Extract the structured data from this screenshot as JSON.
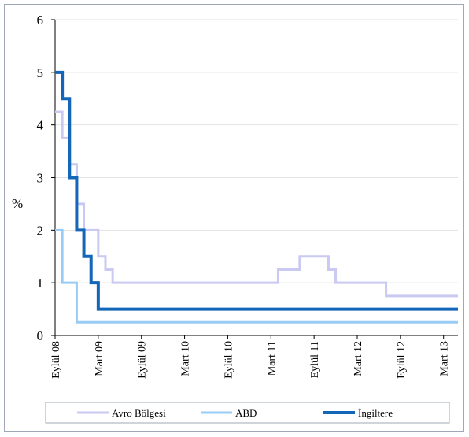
{
  "chart_data": {
    "type": "line",
    "title": "",
    "xlabel": "",
    "ylabel": "%",
    "ylim": [
      0,
      6
    ],
    "yticks": [
      "0",
      "1",
      "2",
      "3",
      "4",
      "5",
      "6"
    ],
    "xticks": [
      "Eylül 08",
      "Mart 09",
      "Eylül 09",
      "Mart 10",
      "Eylül 10",
      "Mart 11",
      "Eylül 11",
      "Mart 12",
      "Eylül 12",
      "Mart 13"
    ],
    "x_format": "year-month",
    "grid": true,
    "legend_position": "bottom",
    "line_style": "step",
    "series": [
      {
        "name": "Avro Bölgesi",
        "color": "#c9c9f2",
        "points": [
          [
            "2008-09",
            4.25
          ],
          [
            "2008-10",
            3.75
          ],
          [
            "2008-11",
            3.25
          ],
          [
            "2008-12",
            2.5
          ],
          [
            "2009-01",
            2.0
          ],
          [
            "2009-03",
            1.5
          ],
          [
            "2009-04",
            1.25
          ],
          [
            "2009-05",
            1.0
          ],
          [
            "2011-04",
            1.25
          ],
          [
            "2011-07",
            1.5
          ],
          [
            "2011-11",
            1.25
          ],
          [
            "2011-12",
            1.0
          ],
          [
            "2012-07",
            0.75
          ],
          [
            "2013-05",
            0.75
          ]
        ]
      },
      {
        "name": "ABD",
        "color": "#99ccf5",
        "points": [
          [
            "2008-09",
            2.0
          ],
          [
            "2008-10",
            1.0
          ],
          [
            "2008-12",
            0.25
          ],
          [
            "2013-05",
            0.25
          ]
        ]
      },
      {
        "name": "İngiltere",
        "color": "#1466b8",
        "points": [
          [
            "2008-09",
            5.0
          ],
          [
            "2008-10",
            4.5
          ],
          [
            "2008-11",
            3.0
          ],
          [
            "2008-12",
            2.0
          ],
          [
            "2009-01",
            1.5
          ],
          [
            "2009-02",
            1.0
          ],
          [
            "2009-03",
            0.5
          ],
          [
            "2013-05",
            0.5
          ]
        ]
      }
    ]
  }
}
